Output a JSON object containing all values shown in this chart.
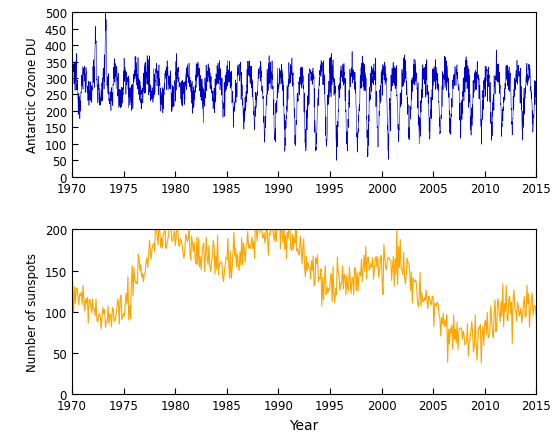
{
  "ozone_ylabel": "Antarctic Ozone DU",
  "sunspot_ylabel": "Number of sunspots",
  "xlabel": "Year",
  "ozone_color": "#0000CC",
  "sunspot_color": "#FFA500",
  "ozone_ylim": [
    0,
    500
  ],
  "sunspot_ylim": [
    0,
    200
  ],
  "xlim": [
    1970,
    2015
  ],
  "ozone_yticks": [
    0,
    50,
    100,
    150,
    200,
    250,
    300,
    350,
    400,
    450,
    500
  ],
  "sunspot_yticks": [
    0,
    50,
    100,
    150,
    200
  ],
  "xticks": [
    1970,
    1975,
    1980,
    1985,
    1990,
    1995,
    2000,
    2005,
    2010,
    2015
  ],
  "sunspot_cycle_peaks": [
    1969,
    1979.5,
    1989.5,
    2000.5,
    2013.5
  ],
  "sunspot_amplitudes": [
    120,
    190,
    190,
    150,
    100
  ],
  "sunspot_widths_rise": [
    2.5,
    3.5,
    3.5,
    3.5,
    3.0
  ],
  "sunspot_widths_fall": [
    3.5,
    4.0,
    4.5,
    5.0,
    4.0
  ]
}
